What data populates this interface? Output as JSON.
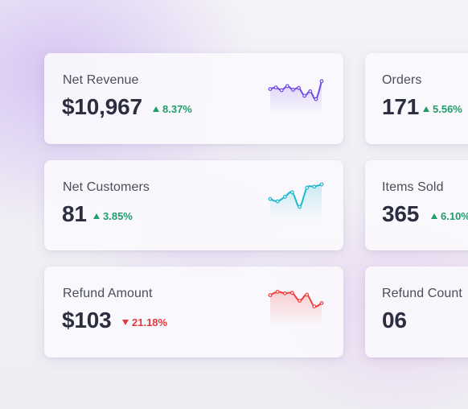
{
  "metrics": [
    {
      "label": "Net Revenue",
      "value": "$10,967",
      "change": "8.37%",
      "direction": "up",
      "color": "#7048e8",
      "sparkline": [
        0.55,
        0.62,
        0.5,
        0.68,
        0.52,
        0.6,
        0.25,
        0.45,
        0.1,
        0.9
      ]
    },
    {
      "label": "Orders",
      "value": "171",
      "change": "5.56%",
      "direction": "up"
    },
    {
      "label": "Net Customers",
      "value": "81",
      "change": "3.85%",
      "direction": "up",
      "color": "#22b8cf",
      "sparkline": [
        0.35,
        0.25,
        0.45,
        0.65,
        0.0,
        0.85,
        0.9,
        1.0
      ]
    },
    {
      "label": "Items Sold",
      "value": "365",
      "change": "6.10%",
      "direction": "up"
    },
    {
      "label": "Refund Amount",
      "value": "$103",
      "change": "21.18%",
      "direction": "down",
      "color": "#f03e3e",
      "sparkline": [
        0.8,
        0.95,
        0.88,
        0.9,
        0.55,
        0.82,
        0.3,
        0.45
      ]
    },
    {
      "label": "Refund Count",
      "value": "06"
    }
  ],
  "colors": {
    "up": "#1f9d6b",
    "down": "#e23a3a"
  }
}
